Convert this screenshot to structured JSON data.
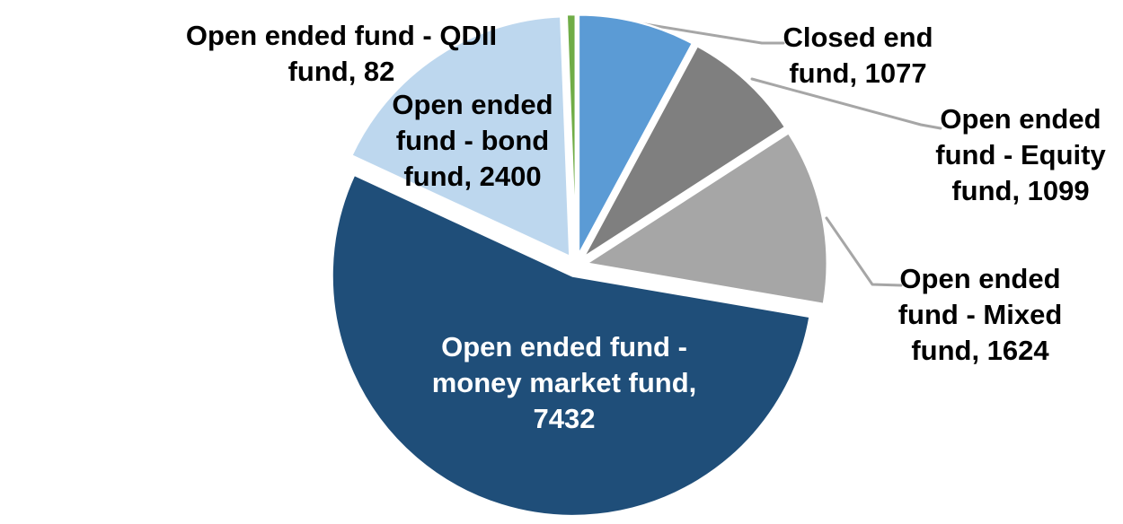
{
  "chart_data": {
    "type": "pie",
    "title": "",
    "legend": "none",
    "background_color": "#FFFFFF",
    "leader_line_color": "#A6A6A6",
    "direction": "clockwise",
    "start_angle_deg": 0,
    "slices": [
      {
        "label": "Closed end fund",
        "value": 1077,
        "color": "#5B9BD5",
        "label_color": "#000000",
        "label_text": "Closed end fund, 1077",
        "label_lines": [
          "Closed end",
          "fund, 1077"
        ],
        "label_position": "outside",
        "has_leader_line": true
      },
      {
        "label": "Open ended fund - Equity fund",
        "value": 1099,
        "color": "#7F7F7F",
        "label_color": "#000000",
        "label_text": "Open ended fund - Equity fund, 1099",
        "label_lines": [
          "Open ended",
          "fund - Equity",
          "fund, 1099"
        ],
        "label_position": "outside",
        "has_leader_line": true
      },
      {
        "label": "Open ended fund - Mixed fund",
        "value": 1624,
        "color": "#A6A6A6",
        "label_color": "#000000",
        "label_text": "Open ended fund - Mixed fund, 1624",
        "label_lines": [
          "Open ended",
          "fund - Mixed",
          "fund, 1624"
        ],
        "label_position": "outside",
        "has_leader_line": true
      },
      {
        "label": "Open ended fund - money market fund",
        "value": 7432,
        "color": "#1F4E79",
        "label_color": "#FFFFFF",
        "label_text": "Open ended fund - money market fund, 7432",
        "label_lines": [
          "Open ended fund -",
          "money market fund,",
          "7432"
        ],
        "label_position": "inside",
        "has_leader_line": false
      },
      {
        "label": "Open ended fund - bond fund",
        "value": 2400,
        "color": "#BDD7EE",
        "label_color": "#000000",
        "label_text": "Open ended fund - bond fund, 2400",
        "label_lines": [
          "Open ended",
          "fund - bond",
          "fund, 2400"
        ],
        "label_position": "inside",
        "has_leader_line": false
      },
      {
        "label": "Open ended fund - QDII fund",
        "value": 82,
        "color": "#70AD47",
        "label_color": "#000000",
        "label_text": "Open ended fund - QDII fund, 82",
        "label_lines": [
          "Open ended fund - QDII",
          "fund, 82"
        ],
        "label_position": "outside",
        "has_leader_line": false
      }
    ]
  }
}
